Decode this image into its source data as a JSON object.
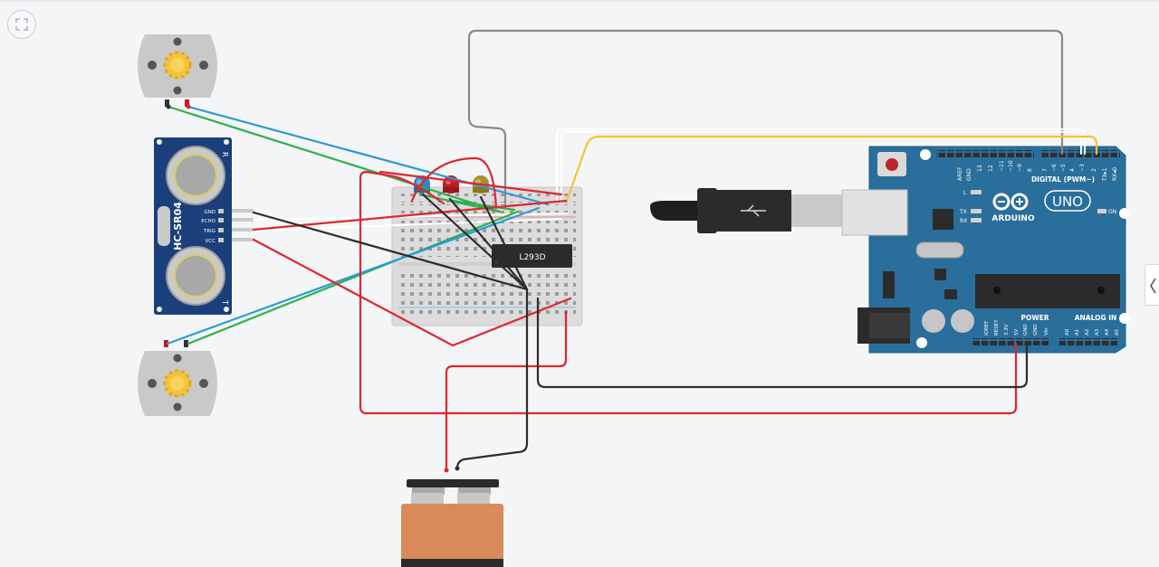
{
  "components": {
    "ultrasonic": {
      "model": "HC-SR04",
      "pins": [
        "GND",
        "ECHO",
        "TRIG",
        "VCC"
      ],
      "mark_r": "R",
      "mark_t": "T"
    },
    "driver_ic": {
      "label": "L293D"
    },
    "arduino": {
      "logo_text": "ARDUINO",
      "model": "UNO",
      "digital_label": "DIGITAL (PWM~)",
      "power_label": "POWER",
      "analog_label": "ANALOG IN",
      "on_label": "ON",
      "tx_label": "TX",
      "rx_label": "RX",
      "l_label": "L",
      "digital_pins": [
        "AREF",
        "GND",
        "13",
        "12",
        "~11",
        "~10",
        "~9",
        "8",
        "7",
        "~6",
        "~5",
        "4",
        "~3",
        "2",
        "TX▸1",
        "RX◂0"
      ],
      "power_pins": [
        "IOREF",
        "RESET",
        "3.3V",
        "5V",
        "GND",
        "GND",
        "Vin"
      ],
      "analog_pins": [
        "A0",
        "A1",
        "A2",
        "A3",
        "A4",
        "A5"
      ]
    },
    "leds": [
      "blue",
      "red",
      "yellow"
    ]
  },
  "colors": {
    "wire_red": "#e0262e",
    "wire_black": "#2d2d2d",
    "wire_green": "#2bb24c",
    "wire_blue": "#2a9ad8",
    "wire_gray": "#8a8a8a",
    "wire_yellow": "#f2c62e",
    "wire_white": "#ffffff",
    "board_blue": "#2a6e9b",
    "sensor_blue": "#1a3f7a"
  },
  "icons": {
    "fit_view": "fit-to-view-icon",
    "side_panel": "chevron-left-icon"
  }
}
